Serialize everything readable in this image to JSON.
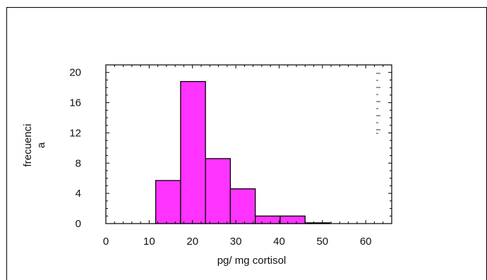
{
  "chart_data": {
    "type": "bar",
    "title": "",
    "xlabel": "pg/ mg cortisol",
    "ylabel": [
      "frecuenci",
      "a"
    ],
    "xlim": [
      0,
      66
    ],
    "ylim": [
      0,
      21
    ],
    "x_ticks": [
      0,
      10,
      20,
      30,
      40,
      50,
      60
    ],
    "y_ticks": [
      0,
      4,
      8,
      12,
      16,
      20
    ],
    "bar_color": "#ff33ff",
    "bins": [
      {
        "start": 11.5,
        "end": 17.25,
        "value": 5.7
      },
      {
        "start": 17.25,
        "end": 23.0,
        "value": 18.8
      },
      {
        "start": 23.0,
        "end": 28.75,
        "value": 8.6
      },
      {
        "start": 28.75,
        "end": 34.5,
        "value": 4.6
      },
      {
        "start": 34.5,
        "end": 40.25,
        "value": 1.0
      },
      {
        "start": 40.25,
        "end": 46.0,
        "value": 1.0
      },
      {
        "start": 46.0,
        "end": 51.75,
        "value": 0.1
      }
    ],
    "grid": false,
    "legend": "none"
  }
}
